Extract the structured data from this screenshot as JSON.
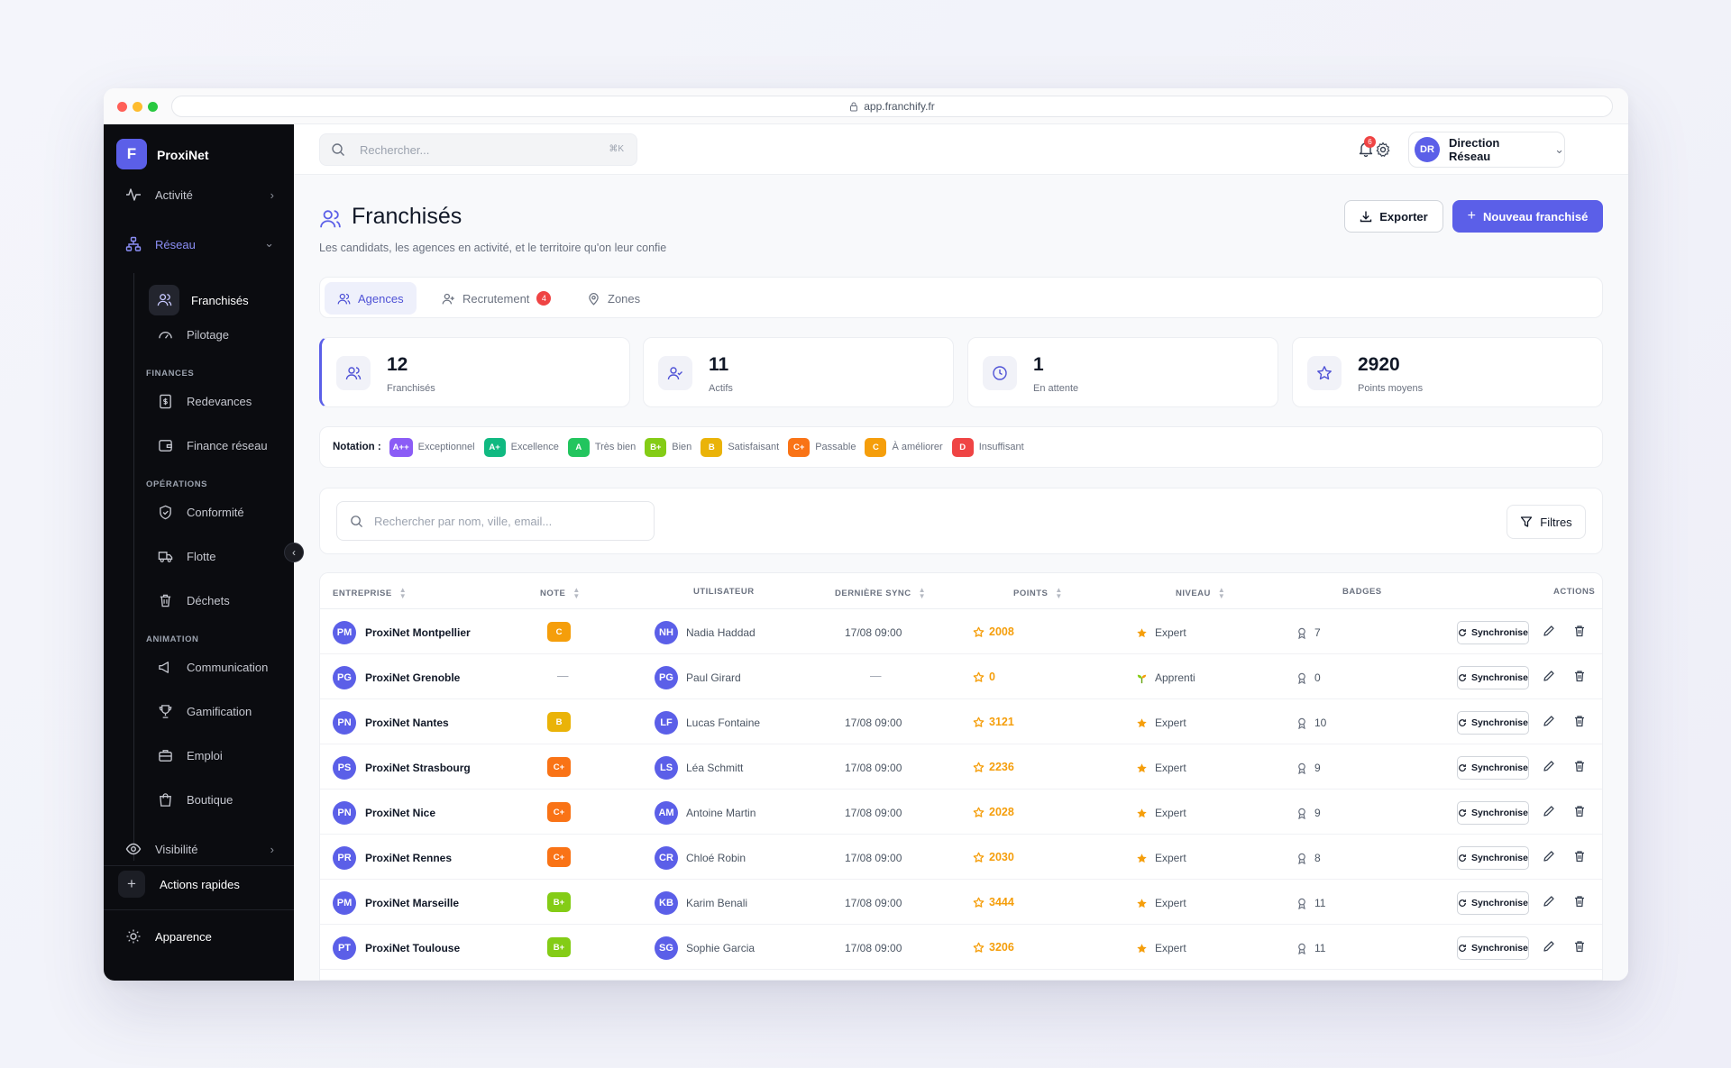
{
  "browser": {
    "url": "app.franchify.fr"
  },
  "sidebar": {
    "logo_letter": "F",
    "brand": "ProxiNet",
    "items": {
      "activite": "Activité",
      "reseau": "Réseau",
      "franchises": "Franchisés",
      "pilotage": "Pilotage",
      "finances_section": "FINANCES",
      "redevances": "Redevances",
      "finance_reseau": "Finance réseau",
      "operations_section": "OPÉRATIONS",
      "conformite": "Conformité",
      "flotte": "Flotte",
      "dechets": "Déchets",
      "animation_section": "ANIMATION",
      "communication": "Communication",
      "gamification": "Gamification",
      "emploi": "Emploi",
      "boutique": "Boutique",
      "visibilite": "Visibilité",
      "actions_rapides": "Actions rapides",
      "apparence": "Apparence"
    }
  },
  "topbar": {
    "search_placeholder": "Rechercher...",
    "search_shortcut": "⌘K",
    "notification_count": "6",
    "user_initials": "DR",
    "user_name": "Direction Réseau"
  },
  "page": {
    "title": "Franchisés",
    "subtitle": "Les candidats, les agences en activité, et le territoire qu'on leur confie",
    "export_label": "Exporter",
    "new_label": "Nouveau franchisé"
  },
  "tabs": [
    {
      "label": "Agences"
    },
    {
      "label": "Recrutement",
      "badge": "4"
    },
    {
      "label": "Zones"
    }
  ],
  "stats": [
    {
      "value": "12",
      "label": "Franchisés"
    },
    {
      "value": "11",
      "label": "Actifs"
    },
    {
      "value": "1",
      "label": "En attente"
    },
    {
      "value": "2920",
      "label": "Points moyens"
    }
  ],
  "rating": {
    "title": "Notation :",
    "grades": [
      {
        "grade": "A++",
        "label": "Exceptionnel",
        "color": "#8b5cf6"
      },
      {
        "grade": "A+",
        "label": "Excellence",
        "color": "#10b981"
      },
      {
        "grade": "A",
        "label": "Très bien",
        "color": "#22c55e"
      },
      {
        "grade": "B+",
        "label": "Bien",
        "color": "#84cc16"
      },
      {
        "grade": "B",
        "label": "Satisfaisant",
        "color": "#eab308"
      },
      {
        "grade": "C+",
        "label": "Passable",
        "color": "#f97316"
      },
      {
        "grade": "C",
        "label": "À améliorer",
        "color": "#f59e0b"
      },
      {
        "grade": "D",
        "label": "Insuffisant",
        "color": "#ef4444"
      }
    ]
  },
  "table": {
    "search_placeholder": "Rechercher par nom, ville, email...",
    "filters_label": "Filtres",
    "headers": {
      "entreprise": "ENTREPRISE",
      "note": "NOTE",
      "utilisateur": "UTILISATEUR",
      "sync": "DERNIÈRE SYNC",
      "points": "POINTS",
      "niveau": "NIVEAU",
      "badges": "BADGES",
      "actions": "ACTIONS"
    },
    "sync_button": "Synchronise",
    "rows": [
      {
        "initials": "PM",
        "company": "ProxiNet Montpellier",
        "note": "C",
        "note_color": "#f59e0b",
        "user_initials": "NH",
        "user": "Nadia Haddad",
        "sync": "17/08 09:00",
        "points": "2008",
        "level": "Expert",
        "level_icon": "star-icon",
        "badges": "7"
      },
      {
        "initials": "PG",
        "company": "ProxiNet Grenoble",
        "note": "—",
        "note_color": "",
        "user_initials": "PG",
        "user": "Paul Girard",
        "sync": "—",
        "points": "0",
        "level": "Apprenti",
        "level_icon": "sprout-icon",
        "badges": "0"
      },
      {
        "initials": "PN",
        "company": "ProxiNet Nantes",
        "note": "B",
        "note_color": "#eab308",
        "user_initials": "LF",
        "user": "Lucas Fontaine",
        "sync": "17/08 09:00",
        "points": "3121",
        "level": "Expert",
        "level_icon": "star-icon",
        "badges": "10"
      },
      {
        "initials": "PS",
        "company": "ProxiNet Strasbourg",
        "note": "C+",
        "note_color": "#f97316",
        "user_initials": "LS",
        "user": "Léa Schmitt",
        "sync": "17/08 09:00",
        "points": "2236",
        "level": "Expert",
        "level_icon": "star-icon",
        "badges": "9"
      },
      {
        "initials": "PN",
        "company": "ProxiNet Nice",
        "note": "C+",
        "note_color": "#f97316",
        "user_initials": "AM",
        "user": "Antoine Martin",
        "sync": "17/08 09:00",
        "points": "2028",
        "level": "Expert",
        "level_icon": "star-icon",
        "badges": "9"
      },
      {
        "initials": "PR",
        "company": "ProxiNet Rennes",
        "note": "C+",
        "note_color": "#f97316",
        "user_initials": "CR",
        "user": "Chloé Robin",
        "sync": "17/08 09:00",
        "points": "2030",
        "level": "Expert",
        "level_icon": "star-icon",
        "badges": "8"
      },
      {
        "initials": "PM",
        "company": "ProxiNet Marseille",
        "note": "B+",
        "note_color": "#84cc16",
        "user_initials": "KB",
        "user": "Karim Benali",
        "sync": "17/08 09:00",
        "points": "3444",
        "level": "Expert",
        "level_icon": "star-icon",
        "badges": "11"
      },
      {
        "initials": "PT",
        "company": "ProxiNet Toulouse",
        "note": "B+",
        "note_color": "#84cc16",
        "user_initials": "SG",
        "user": "Sophie Garcia",
        "sync": "17/08 09:00",
        "points": "3206",
        "level": "Expert",
        "level_icon": "star-icon",
        "badges": "11"
      }
    ]
  }
}
